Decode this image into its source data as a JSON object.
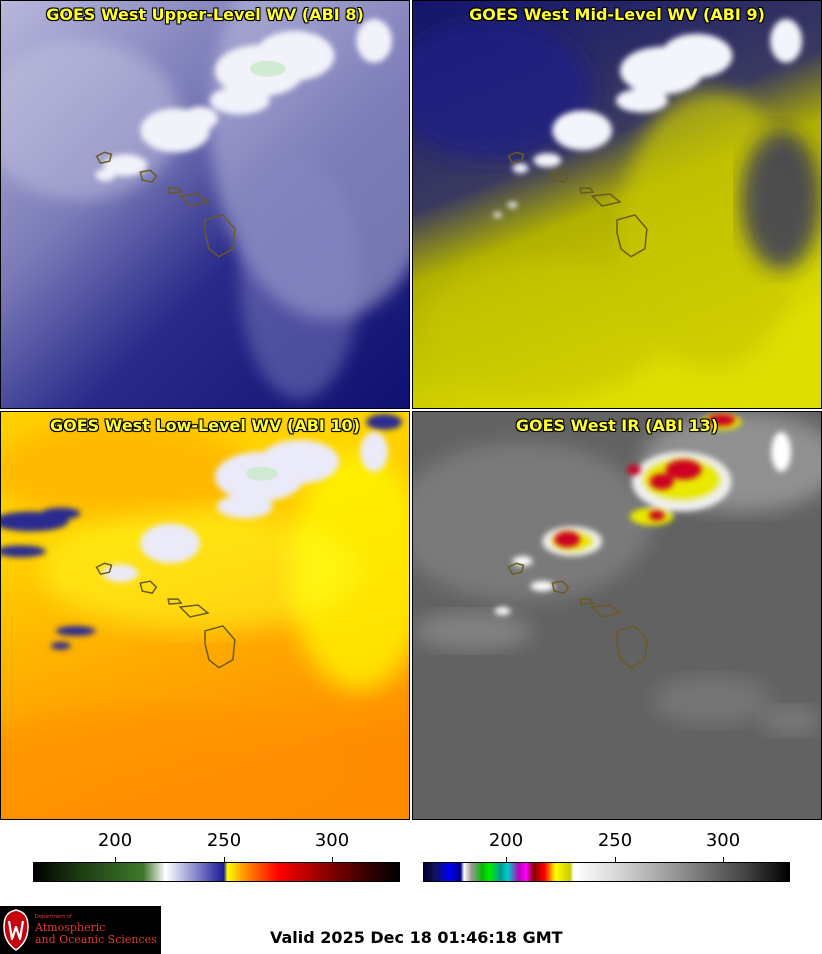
{
  "panels": [
    {
      "title": "GOES West Upper-Level WV (ABI 8)"
    },
    {
      "title": "GOES West Mid-Level WV (ABI 9)"
    },
    {
      "title": "GOES West Low-Level WV (ABI 10)"
    },
    {
      "title": "GOES West IR (ABI 13)"
    }
  ],
  "colorbars": {
    "left": {
      "ticks": [
        "200",
        "250",
        "300"
      ]
    },
    "right": {
      "ticks": [
        "200",
        "250",
        "300"
      ]
    }
  },
  "logo": {
    "small_text": "Department of",
    "line1": "Atmospheric",
    "line2": "and Oceanic Sciences"
  },
  "valid_time": "Valid 2025 Dec 18 01:46:18 GMT",
  "colors": {
    "title_yellow": "#ffff33",
    "wv_dark": "#1a1a7a",
    "wv_light": "#c8c8e8",
    "mid_yellow": "#cccc00",
    "low_orange": "#ff9900",
    "ir_gray": "#666666",
    "ir_cold": "#dd0022"
  }
}
